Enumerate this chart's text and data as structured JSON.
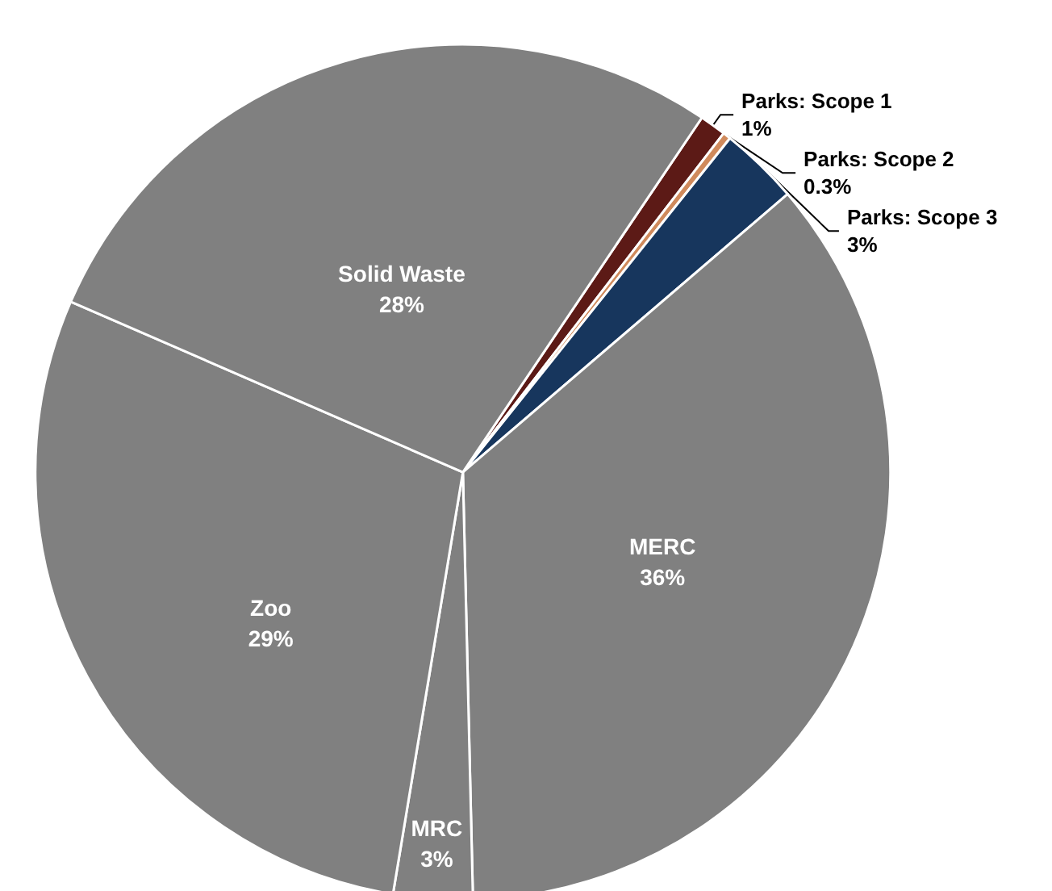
{
  "chart_data": {
    "type": "pie",
    "categories": [
      "Parks: Scope 1",
      "Parks: Scope 2",
      "Parks: Scope 3",
      "MERC",
      "MRC",
      "Zoo",
      "Solid Waste"
    ],
    "values": [
      1,
      0.3,
      3,
      36,
      3,
      29,
      28
    ],
    "colors": [
      "#5c1a16",
      "#d08a5c",
      "#17365d",
      "#808080",
      "#808080",
      "#808080",
      "#808080"
    ],
    "value_labels": [
      "1%",
      "0.3%",
      "3%",
      "36%",
      "3%",
      "29%",
      "28%"
    ],
    "legend": false
  }
}
